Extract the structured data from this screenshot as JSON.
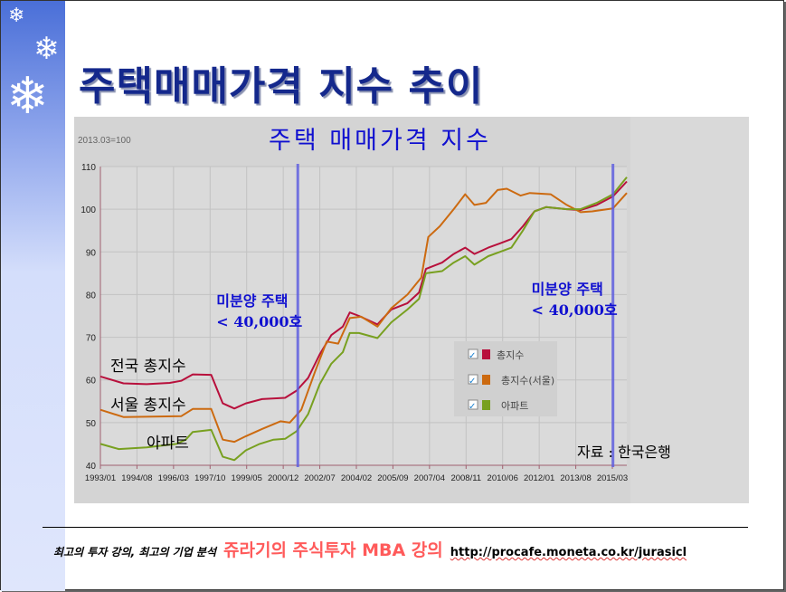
{
  "slide": {
    "title": "주택매매가격 지수 추이"
  },
  "footer": {
    "tagline": "최고의 투자 강의, 최고의 기업 분석",
    "brand": "쥬라기의 주식투자 MBA 강의",
    "url": "http://procafe.moneta.co.kr/jurasicl"
  },
  "chart_data": {
    "type": "line",
    "title": "주택 매매가격 지수",
    "base_note": "2013.03=100",
    "ylim": [
      40,
      110
    ],
    "yticks": [
      40,
      50,
      60,
      70,
      80,
      90,
      100,
      110
    ],
    "xlim": [
      1993.0,
      2015.8
    ],
    "xtick_labels": [
      "1993/01",
      "1994/08",
      "1996/03",
      "1997/10",
      "1999/05",
      "2000/12",
      "2002/07",
      "2004/02",
      "2005/09",
      "2007/04",
      "2008/11",
      "2010/06",
      "2012/01",
      "2013/08",
      "2015/03"
    ],
    "grid": true,
    "legend_position": "center-right",
    "series": [
      {
        "name": "총지수",
        "label": "전국 총지수",
        "color": "#b8103c",
        "x": [
          1993,
          1994,
          1995,
          1996,
          1996.5,
          1997,
          1997.8,
          1998.3,
          1998.8,
          1999.3,
          2000,
          2001,
          2001.5,
          2002,
          2002.5,
          2003,
          2003.5,
          2003.8,
          2004.2,
          2005,
          2005.6,
          2006.3,
          2006.8,
          2007.1,
          2007.8,
          2008.3,
          2008.8,
          2009.2,
          2009.8,
          2010.3,
          2010.8,
          2011.3,
          2011.8,
          2012.3,
          2013.2,
          2013.8,
          2014.5,
          2015.2,
          2015.8
        ],
        "values": [
          60.8,
          59.2,
          59,
          59.3,
          59.8,
          61.3,
          61.2,
          54.5,
          53.3,
          54.5,
          55.5,
          55.8,
          57.5,
          60.5,
          66,
          70.5,
          72.5,
          75.8,
          75,
          73,
          76.5,
          78,
          80.5,
          86,
          87.5,
          89.5,
          91,
          89.5,
          91,
          92,
          93,
          96,
          99.5,
          100.5,
          100,
          99.8,
          101,
          103,
          106.5
        ]
      },
      {
        "name": "총지수(서울)",
        "label": "서울 총지수",
        "color": "#cc6a10",
        "x": [
          1993,
          1994,
          1996.5,
          1997,
          1997.8,
          1998.3,
          1998.8,
          1999.3,
          2000,
          2000.8,
          2001.2,
          2001.7,
          2002.3,
          2002.8,
          2003.3,
          2003.8,
          2004.3,
          2005,
          2005.6,
          2006.3,
          2006.9,
          2007.2,
          2007.7,
          2008.3,
          2008.8,
          2009.2,
          2009.7,
          2010.2,
          2010.6,
          2011.2,
          2011.6,
          2012.5,
          2013.2,
          2013.8,
          2014.3,
          2015.2,
          2015.8
        ],
        "values": [
          53,
          51.3,
          51.5,
          53.2,
          53.2,
          46,
          45.5,
          46.8,
          48.5,
          50.3,
          50,
          53,
          62,
          69,
          68.5,
          74.5,
          74.8,
          72.5,
          76.8,
          80,
          84,
          93.5,
          96,
          100,
          103.5,
          101,
          101.5,
          104.5,
          104.8,
          103.2,
          103.8,
          103.5,
          101,
          99.3,
          99.5,
          100.2,
          103.8
        ]
      },
      {
        "name": "아파트",
        "label": "아파트",
        "color": "#78a020",
        "x": [
          1993,
          1993.8,
          1995,
          1996.3,
          1996.7,
          1997,
          1997.8,
          1998.3,
          1998.8,
          1999.3,
          1999.9,
          2000.5,
          2001,
          2001.5,
          2002,
          2002.5,
          2003,
          2003.5,
          2003.8,
          2004.2,
          2005,
          2005.6,
          2006.3,
          2006.8,
          2007.1,
          2007.8,
          2008.3,
          2008.8,
          2009.2,
          2009.8,
          2010.3,
          2010.8,
          2011.3,
          2011.8,
          2012.3,
          2013.2,
          2013.8,
          2014.5,
          2015.2,
          2015.8
        ],
        "values": [
          45,
          43.8,
          44.2,
          45,
          46,
          47.8,
          48.3,
          42,
          41.2,
          43.5,
          45,
          46,
          46.2,
          48,
          52,
          59,
          63.8,
          66.5,
          71,
          71,
          69.8,
          73.5,
          76.5,
          79,
          85,
          85.5,
          87.5,
          89,
          87,
          89,
          90,
          91,
          95,
          99.5,
          100.5,
          100,
          100,
          101.5,
          103.5,
          107.5
        ]
      }
    ],
    "annotations": [
      {
        "x": 2001.55,
        "line1": "미분양 주택",
        "line2": "< 40,000호"
      },
      {
        "x": 2015.2,
        "line1": "미분양 주택",
        "line2": "< 40,000호"
      }
    ],
    "source": "자료 : 한국은행"
  }
}
